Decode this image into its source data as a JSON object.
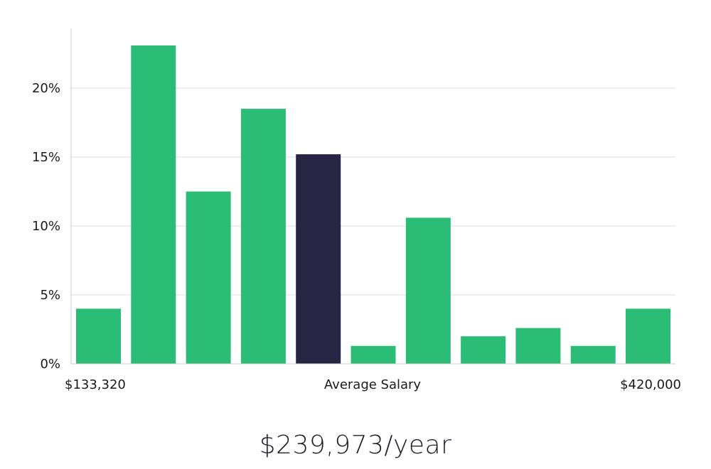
{
  "chart_data": {
    "type": "bar",
    "categories": [
      "1",
      "2",
      "3",
      "4",
      "5",
      "6",
      "7",
      "8",
      "9",
      "10",
      "11"
    ],
    "values": [
      4.0,
      23.1,
      12.5,
      18.5,
      15.2,
      1.3,
      10.6,
      2.0,
      2.6,
      1.3,
      4.0
    ],
    "highlight_index": 4,
    "ylim": [
      0,
      25
    ],
    "yticks": [
      0,
      5,
      10,
      15,
      20
    ],
    "ytick_labels": [
      "0%",
      "5%",
      "10%",
      "15%",
      "20%"
    ],
    "grid": true,
    "x_min_label": "$133,320",
    "xlabel": "Average Salary",
    "x_max_label": "$420,000",
    "colors": {
      "bar": "#2bbd75",
      "highlight": "#272444",
      "grid": "#dddddd",
      "axis": "#cccccc"
    }
  },
  "salary_text": "$239,973/year"
}
